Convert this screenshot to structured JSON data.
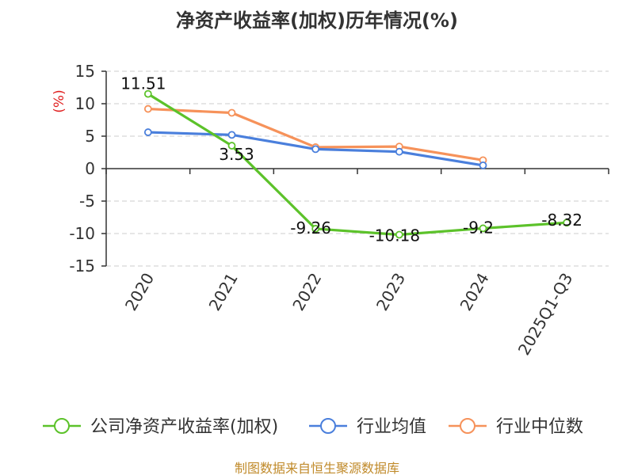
{
  "chart_data": {
    "type": "line",
    "title": "净资产收益率(加权)历年情况(%)",
    "ylabel": "(%)",
    "xlabel": "",
    "categories": [
      "2020",
      "2021",
      "2022",
      "2023",
      "2024",
      "2025Q1-Q3"
    ],
    "ylim": [
      -15,
      15
    ],
    "yticks": [
      15,
      10,
      5,
      0,
      -5,
      -10,
      -15
    ],
    "grid": true,
    "legend_position": "bottom",
    "series": [
      {
        "name": "公司净资产收益率(加权)",
        "color": "#5cc22a",
        "values": [
          11.51,
          3.53,
          -9.26,
          -10.18,
          -9.2,
          -8.32
        ],
        "labels": [
          "11.51",
          "3.53",
          "-9.26",
          "-10.18",
          "-9.2",
          "-8.32"
        ]
      },
      {
        "name": "行业均值",
        "color": "#4a7fdc",
        "values": [
          5.6,
          5.2,
          3.0,
          2.6,
          0.5,
          null
        ],
        "labels": null
      },
      {
        "name": "行业中位数",
        "color": "#f6925a",
        "values": [
          9.2,
          8.6,
          3.3,
          3.4,
          1.3,
          null
        ],
        "labels": null
      }
    ]
  },
  "footer": {
    "source": "制图数据来自恒生聚源数据库"
  },
  "colors": {
    "ylabel": "#e02020",
    "axis": "#333333",
    "grid": "#cccccc"
  }
}
